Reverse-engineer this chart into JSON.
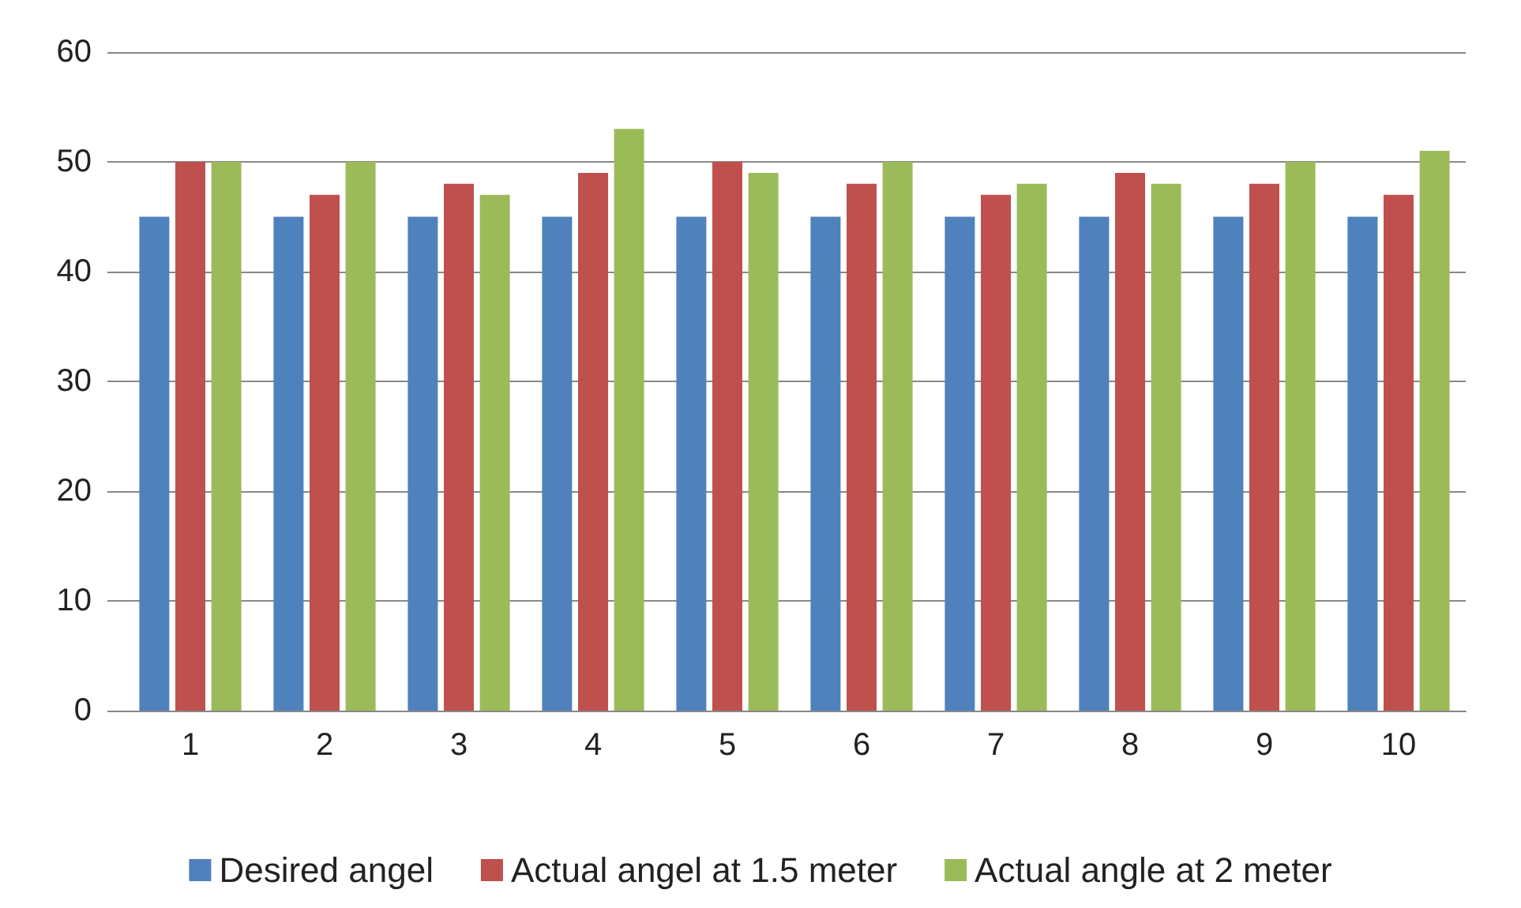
{
  "chart_data": {
    "type": "bar",
    "categories": [
      "1",
      "2",
      "3",
      "4",
      "5",
      "6",
      "7",
      "8",
      "9",
      "10"
    ],
    "series": [
      {
        "name": "Desired angel",
        "color": "#4f81bd",
        "values": [
          45,
          45,
          45,
          45,
          45,
          45,
          45,
          45,
          45,
          45
        ]
      },
      {
        "name": "Actual angel at 1.5 meter",
        "color": "#c0504d",
        "values": [
          50,
          47,
          48,
          49,
          50,
          48,
          47,
          49,
          48,
          47
        ]
      },
      {
        "name": "Actual angle at 2 meter",
        "color": "#9bbb59",
        "values": [
          50,
          50,
          47,
          53,
          49,
          50,
          48,
          48,
          50,
          51
        ]
      }
    ],
    "ylim": [
      0,
      60
    ],
    "yticks": [
      0,
      10,
      20,
      30,
      40,
      50,
      60
    ],
    "grid": "y",
    "legend": "bottom"
  }
}
